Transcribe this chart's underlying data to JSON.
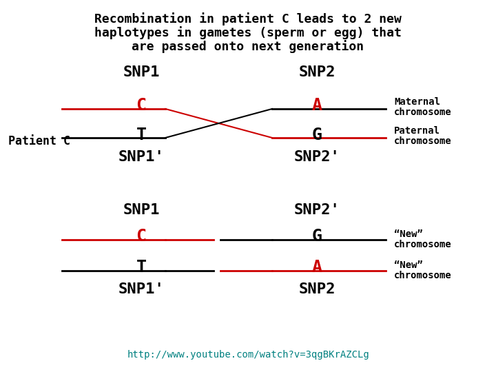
{
  "title_lines": [
    "Recombination in patient C leads to 2 new",
    "haplotypes in gametes (sperm or egg) that",
    "are passed onto next generation"
  ],
  "bg_color": "#ffffff",
  "black": "#000000",
  "red": "#cc0000",
  "teal": "#008080",
  "font_family": "monospace",
  "url": "http://www.youtube.com/watch?v=3qgBKrAZCLg"
}
